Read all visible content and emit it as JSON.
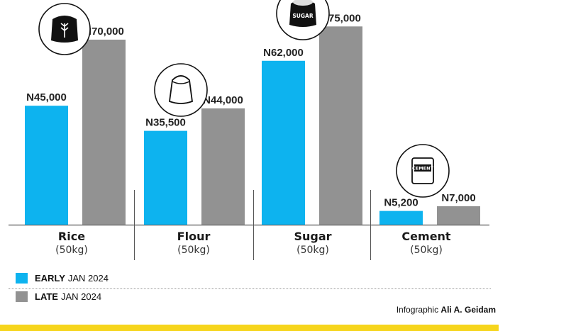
{
  "chart_data": {
    "type": "bar",
    "categories": [
      {
        "name": "Rice",
        "unit": "(50kg)",
        "icon": "rice-sack-icon"
      },
      {
        "name": "Flour",
        "unit": "(50kg)",
        "icon": "flour-sack-icon"
      },
      {
        "name": "Sugar",
        "unit": "(50kg)",
        "icon": "sugar-sack-icon",
        "icon_text": "SUGAR"
      },
      {
        "name": "Cement",
        "unit": "(50kg)",
        "icon": "cement-bag-icon",
        "icon_text": "CEMENT"
      }
    ],
    "series": [
      {
        "name": "EARLY JAN 2024",
        "color": "#0db3ef",
        "values": [
          45000,
          35500,
          62000,
          5200
        ],
        "labels": [
          "N45,000",
          "N35,500",
          "N62,000",
          "N5,200"
        ]
      },
      {
        "name": "LATE JAN 2024",
        "color": "#929292",
        "values": [
          70000,
          44000,
          75000,
          7000
        ],
        "labels": [
          "N70,000",
          "N44,000",
          "N75,000",
          "N7,000"
        ]
      }
    ],
    "ylim": [
      0,
      85000
    ],
    "grid": false,
    "legend_position": "bottom-left"
  },
  "legend": [
    {
      "bold": "EARLY",
      "rest": "JAN 2024",
      "color": "#0db3ef"
    },
    {
      "bold": "LATE",
      "rest": "JAN 2024",
      "color": "#929292"
    }
  ],
  "credit": {
    "prefix": "Infographic",
    "author": "Ali A. Geidam"
  },
  "colors": {
    "accent_bar": "#f6d51c",
    "axis": "#555555"
  }
}
